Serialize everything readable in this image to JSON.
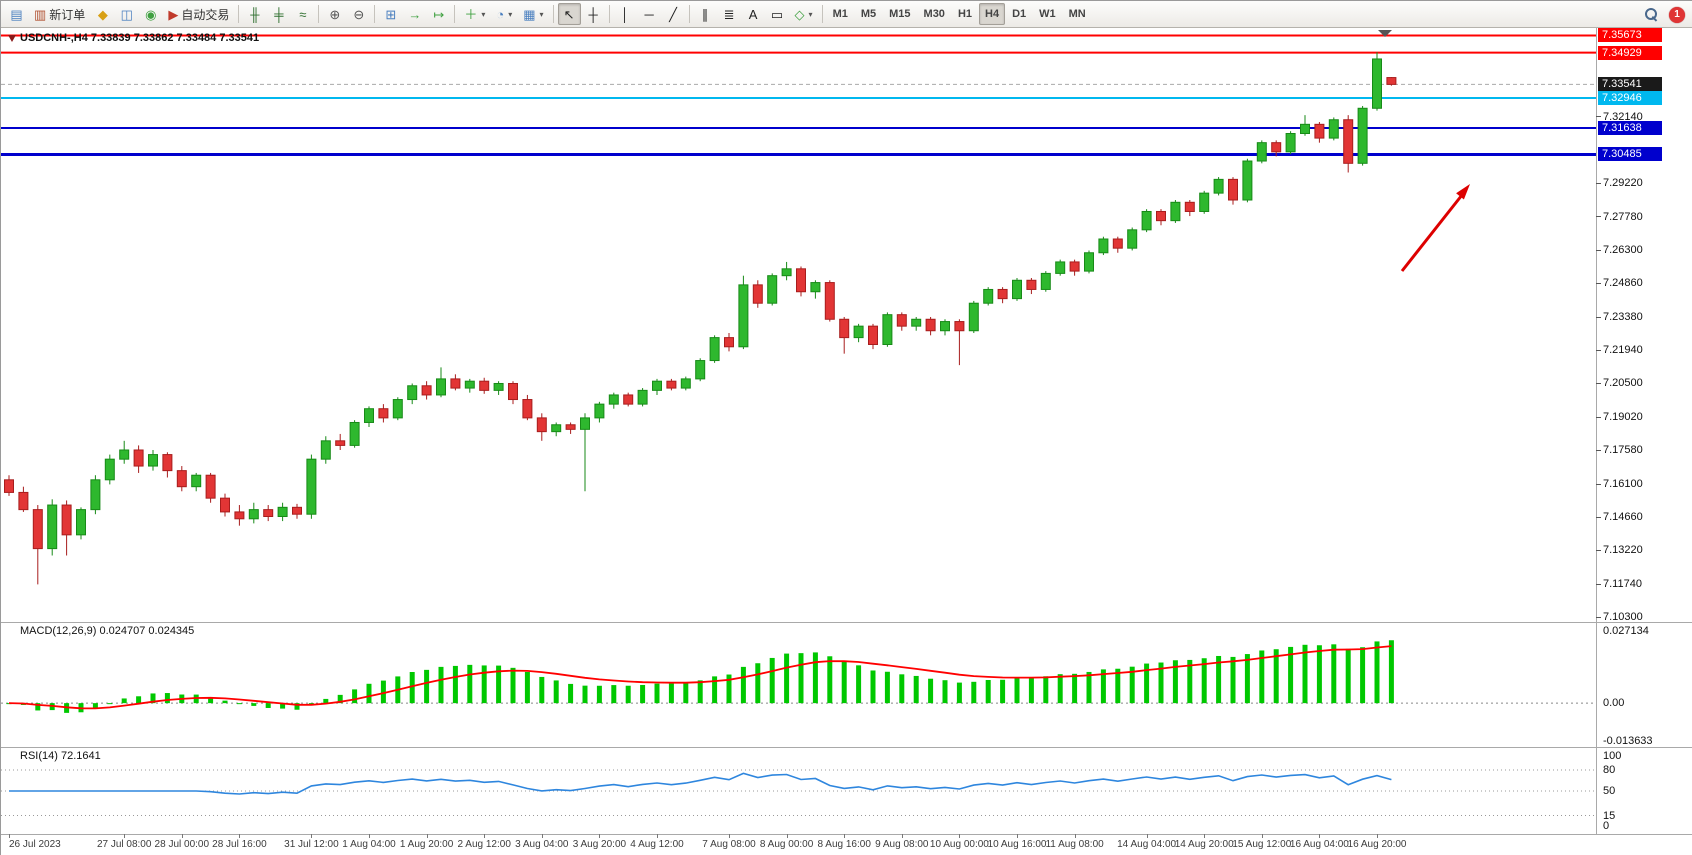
{
  "toolbar": {
    "notification_count": "1",
    "timeframes": [
      "M1",
      "M5",
      "M15",
      "M30",
      "H1",
      "H4",
      "D1",
      "W1",
      "MN"
    ],
    "active_timeframe": "H4",
    "groups": [
      [
        {
          "name": "new-chart-button",
          "icon": "new-chart-icon",
          "glyph": "▤",
          "color": "#4a7fbf"
        },
        {
          "name": "new-order-button",
          "icon": "new-order-icon",
          "glyph": "▥",
          "color": "#b05030",
          "text": "新订单"
        },
        {
          "name": "metaeditor-button",
          "icon": "metaeditor-icon",
          "glyph": "◆",
          "color": "#d8a015"
        },
        {
          "name": "market-watch-button",
          "icon": "market-watch-icon",
          "glyph": "◫",
          "color": "#4a7fbf"
        },
        {
          "name": "help-button",
          "icon": "help-icon",
          "glyph": "◉",
          "color": "#3fa040"
        },
        {
          "name": "auto-trading-button",
          "icon": "auto-trading-icon",
          "glyph": "▶",
          "color": "#c03a2b",
          "text": "自动交易"
        }
      ],
      [
        {
          "name": "bar-chart-button",
          "icon": "ohlc-bars-icon",
          "glyph": "╫",
          "color": "#2f6f2f"
        },
        {
          "name": "candlestick-chart-button",
          "icon": "candlestick-icon",
          "glyph": "╪",
          "color": "#2f6f2f"
        },
        {
          "name": "line-chart-button",
          "icon": "line-chart-icon",
          "glyph": "≈",
          "color": "#2f6f2f"
        }
      ],
      [
        {
          "name": "zoom-in-button",
          "icon": "zoom-in-icon",
          "glyph": "⊕",
          "color": "#555555"
        },
        {
          "name": "zoom-out-button",
          "icon": "zoom-out-icon",
          "glyph": "⊖",
          "color": "#555555"
        }
      ],
      [
        {
          "name": "tile-windows-button",
          "icon": "tile-windows-icon",
          "glyph": "⊞",
          "color": "#4a7fbf"
        },
        {
          "name": "auto-scroll-button",
          "icon": "auto-scroll-icon",
          "glyph": "→",
          "color": "#3fa040"
        },
        {
          "name": "chart-shift-button",
          "icon": "chart-shift-icon",
          "glyph": "↦",
          "color": "#3fa040"
        }
      ],
      [
        {
          "name": "indicators-button",
          "icon": "indicators-icon",
          "glyph": "＋",
          "color": "#3fa040",
          "arrow": true
        },
        {
          "name": "periods-button",
          "icon": "clock-icon",
          "glyph": "◔",
          "color": "#4a7fbf",
          "arrow": true
        },
        {
          "name": "templates-button",
          "icon": "template-icon",
          "glyph": "▦",
          "color": "#4a7fbf",
          "arrow": true
        }
      ],
      [
        {
          "name": "cursor-button",
          "icon": "cursor-icon",
          "glyph": "↖",
          "color": "#222222",
          "active": true
        },
        {
          "name": "crosshair-button",
          "icon": "crosshair-icon",
          "glyph": "┼",
          "color": "#222222"
        }
      ],
      [
        {
          "name": "vertical-line-button",
          "icon": "vertical-line-icon",
          "glyph": "│",
          "color": "#222222"
        },
        {
          "name": "horizontal-line-button",
          "icon": "horizontal-line-icon",
          "glyph": "─",
          "color": "#222222"
        },
        {
          "name": "trendline-button",
          "icon": "trendline-icon",
          "glyph": "╱",
          "color": "#222222"
        }
      ],
      [
        {
          "name": "channel-button",
          "icon": "channel-icon",
          "glyph": "∥",
          "color": "#222222"
        },
        {
          "name": "fibonacci-button",
          "icon": "fibonacci-icon",
          "glyph": "≣",
          "color": "#222222"
        },
        {
          "name": "text-button",
          "icon": "text-icon",
          "glyph": "A",
          "color": "#222222"
        },
        {
          "name": "label-button",
          "icon": "label-icon",
          "glyph": "▭",
          "color": "#222222"
        },
        {
          "name": "shapes-button",
          "icon": "shapes-icon",
          "glyph": "◇",
          "color": "#3fa040",
          "arrow": true
        }
      ]
    ]
  },
  "main_chart": {
    "title": "USDCNH-,H4 7.33839 7.33862 7.33484 7.33541",
    "ohlc": {
      "open": "7.33839",
      "high": "7.33862",
      "low": "7.33484",
      "close": "7.33541"
    },
    "colors": {
      "bull": "#2eb82e",
      "bull_border": "#178a17",
      "bear": "#e23535",
      "bear_border": "#a81d1d",
      "arrow": "#dd0000",
      "bid_line": "#aaaaaa"
    },
    "price_axis": {
      "plain_ticks": [
        "7.32140",
        "7.29220",
        "7.27780",
        "7.26300",
        "7.24860",
        "7.23380",
        "7.21940",
        "7.20500",
        "7.19020",
        "7.17580",
        "7.16100",
        "7.14660",
        "7.13220",
        "7.11740",
        "7.10300"
      ],
      "line_labels": [
        {
          "text": "7.35673",
          "price": 7.35673,
          "bg": "#ff0000"
        },
        {
          "text": "7.34929",
          "price": 7.34929,
          "bg": "#ff0000"
        },
        {
          "text": "7.33541",
          "price": 7.33541,
          "bg": "#1a1a1a"
        },
        {
          "text": "7.32946",
          "price": 7.32946,
          "bg": "#00b8ef"
        },
        {
          "text": "7.31638",
          "price": 7.31638,
          "bg": "#0000cd"
        },
        {
          "text": "7.30485",
          "price": 7.30485,
          "bg": "#0000cd"
        }
      ]
    }
  },
  "macd": {
    "label": "MACD(12,26,9) 0.024707 0.024345",
    "value_main": "0.024707",
    "value_signal": "0.024345",
    "axis_ticks": [
      "0.027134",
      "0.00",
      "-0.013633"
    ],
    "histogram_color": "#00c800",
    "signal_color": "#ff0000",
    "ylim": [
      -0.0145,
      0.0265
    ]
  },
  "rsi": {
    "label": "RSI(14) 72.1641",
    "value": "72.1641",
    "axis_ticks": [
      "100",
      "80",
      "50",
      "15",
      "0"
    ],
    "levels": [
      80,
      50,
      15
    ],
    "line_color": "#2e86de"
  },
  "time_axis": {
    "labels": [
      "26 Jul 2023",
      "27 Jul 08:00",
      "28 Jul 00:00",
      "28 Jul 16:00",
      "31 Jul 12:00",
      "1 Aug 04:00",
      "1 Aug 20:00",
      "2 Aug 12:00",
      "3 Aug 04:00",
      "3 Aug 20:00",
      "4 Aug 12:00",
      "7 Aug 08:00",
      "8 Aug 00:00",
      "8 Aug 16:00",
      "9 Aug 08:00",
      "10 Aug 00:00",
      "10 Aug 16:00",
      "11 Aug 08:00",
      "14 Aug 04:00",
      "14 Aug 20:00",
      "15 Aug 12:00",
      "16 Aug 04:00",
      "16 Aug 20:00"
    ],
    "bar_indices": [
      0,
      8,
      12,
      16,
      21,
      25,
      29,
      33,
      37,
      41,
      45,
      50,
      54,
      58,
      62,
      66,
      70,
      74,
      79,
      83,
      87,
      91,
      95
    ]
  },
  "chart_data": {
    "type": "candlestick",
    "title": "USDCNH- H4",
    "ylim": [
      7.101,
      7.36
    ],
    "horizontal_lines": [
      {
        "price": 7.35673,
        "color": "#ff0000",
        "width": 2
      },
      {
        "price": 7.34929,
        "color": "#ff0000",
        "width": 2
      },
      {
        "price": 7.32946,
        "color": "#00b8ef",
        "width": 2
      },
      {
        "price": 7.31638,
        "color": "#0000cd",
        "width": 2
      },
      {
        "price": 7.30485,
        "color": "#0000cd",
        "width": 3
      }
    ],
    "bid_price": 7.33541,
    "annotations": [
      {
        "type": "arrow",
        "color": "#dd0000",
        "direction": "up-right"
      }
    ],
    "indicators": [
      {
        "name": "MACD",
        "params": "12,26,9",
        "current_main": 0.024707,
        "current_signal": 0.024345,
        "derived_from": "candles_ohlc closes"
      },
      {
        "name": "RSI",
        "params": "14",
        "current": 72.1641,
        "levels": [
          80,
          50,
          15
        ],
        "derived_from": "candles_ohlc closes"
      }
    ],
    "candles_ohlc": [
      [
        7.163,
        7.165,
        7.156,
        7.1575
      ],
      [
        7.1575,
        7.16,
        7.149,
        7.15
      ],
      [
        7.15,
        7.152,
        7.1174,
        7.133
      ],
      [
        7.133,
        7.1545,
        7.13,
        7.152
      ],
      [
        7.152,
        7.154,
        7.13,
        7.139
      ],
      [
        7.139,
        7.151,
        7.137,
        7.15
      ],
      [
        7.15,
        7.165,
        7.148,
        7.163
      ],
      [
        7.163,
        7.174,
        7.161,
        7.172
      ],
      [
        7.172,
        7.18,
        7.17,
        7.176
      ],
      [
        7.176,
        7.178,
        7.166,
        7.169
      ],
      [
        7.169,
        7.176,
        7.167,
        7.174
      ],
      [
        7.174,
        7.175,
        7.164,
        7.167
      ],
      [
        7.167,
        7.169,
        7.158,
        7.16
      ],
      [
        7.16,
        7.166,
        7.158,
        7.165
      ],
      [
        7.165,
        7.166,
        7.153,
        7.155
      ],
      [
        7.155,
        7.157,
        7.147,
        7.149
      ],
      [
        7.149,
        7.152,
        7.143,
        7.146
      ],
      [
        7.146,
        7.153,
        7.144,
        7.15
      ],
      [
        7.15,
        7.152,
        7.145,
        7.147
      ],
      [
        7.147,
        7.153,
        7.145,
        7.151
      ],
      [
        7.151,
        7.1525,
        7.146,
        7.148
      ],
      [
        7.148,
        7.174,
        7.146,
        7.172
      ],
      [
        7.172,
        7.182,
        7.17,
        7.18
      ],
      [
        7.18,
        7.183,
        7.176,
        7.178
      ],
      [
        7.178,
        7.189,
        7.177,
        7.188
      ],
      [
        7.188,
        7.195,
        7.186,
        7.194
      ],
      [
        7.194,
        7.196,
        7.188,
        7.19
      ],
      [
        7.19,
        7.199,
        7.189,
        7.198
      ],
      [
        7.198,
        7.205,
        7.196,
        7.204
      ],
      [
        7.204,
        7.206,
        7.198,
        7.2
      ],
      [
        7.2,
        7.212,
        7.199,
        7.207
      ],
      [
        7.207,
        7.209,
        7.202,
        7.203
      ],
      [
        7.203,
        7.207,
        7.201,
        7.206
      ],
      [
        7.206,
        7.2075,
        7.2005,
        7.202
      ],
      [
        7.202,
        7.206,
        7.2,
        7.205
      ],
      [
        7.205,
        7.206,
        7.196,
        7.198
      ],
      [
        7.198,
        7.2,
        7.189,
        7.19
      ],
      [
        7.19,
        7.192,
        7.18,
        7.184
      ],
      [
        7.184,
        7.188,
        7.182,
        7.187
      ],
      [
        7.187,
        7.188,
        7.183,
        7.185
      ],
      [
        7.185,
        7.192,
        7.158,
        7.19
      ],
      [
        7.19,
        7.197,
        7.188,
        7.196
      ],
      [
        7.196,
        7.201,
        7.194,
        7.2
      ],
      [
        7.2,
        7.201,
        7.195,
        7.196
      ],
      [
        7.196,
        7.203,
        7.195,
        7.202
      ],
      [
        7.202,
        7.207,
        7.2,
        7.206
      ],
      [
        7.206,
        7.207,
        7.202,
        7.203
      ],
      [
        7.203,
        7.208,
        7.202,
        7.207
      ],
      [
        7.207,
        7.216,
        7.206,
        7.215
      ],
      [
        7.215,
        7.226,
        7.214,
        7.225
      ],
      [
        7.225,
        7.227,
        7.219,
        7.221
      ],
      [
        7.221,
        7.252,
        7.22,
        7.248
      ],
      [
        7.248,
        7.25,
        7.238,
        7.24
      ],
      [
        7.24,
        7.253,
        7.239,
        7.252
      ],
      [
        7.252,
        7.258,
        7.25,
        7.255
      ],
      [
        7.255,
        7.256,
        7.243,
        7.245
      ],
      [
        7.245,
        7.25,
        7.242,
        7.249
      ],
      [
        7.249,
        7.25,
        7.232,
        7.233
      ],
      [
        7.233,
        7.234,
        7.218,
        7.225
      ],
      [
        7.225,
        7.231,
        7.223,
        7.23
      ],
      [
        7.23,
        7.231,
        7.22,
        7.222
      ],
      [
        7.222,
        7.236,
        7.221,
        7.235
      ],
      [
        7.235,
        7.236,
        7.228,
        7.23
      ],
      [
        7.23,
        7.234,
        7.228,
        7.233
      ],
      [
        7.233,
        7.234,
        7.226,
        7.228
      ],
      [
        7.228,
        7.233,
        7.226,
        7.232
      ],
      [
        7.232,
        7.233,
        7.213,
        7.228
      ],
      [
        7.228,
        7.241,
        7.227,
        7.24
      ],
      [
        7.24,
        7.247,
        7.239,
        7.246
      ],
      [
        7.246,
        7.247,
        7.24,
        7.242
      ],
      [
        7.242,
        7.251,
        7.241,
        7.25
      ],
      [
        7.25,
        7.251,
        7.244,
        7.246
      ],
      [
        7.246,
        7.254,
        7.245,
        7.253
      ],
      [
        7.253,
        7.259,
        7.252,
        7.258
      ],
      [
        7.258,
        7.259,
        7.252,
        7.254
      ],
      [
        7.254,
        7.263,
        7.253,
        7.262
      ],
      [
        7.262,
        7.269,
        7.261,
        7.268
      ],
      [
        7.268,
        7.269,
        7.262,
        7.264
      ],
      [
        7.264,
        7.273,
        7.263,
        7.272
      ],
      [
        7.272,
        7.281,
        7.271,
        7.28
      ],
      [
        7.28,
        7.281,
        7.274,
        7.276
      ],
      [
        7.276,
        7.285,
        7.275,
        7.284
      ],
      [
        7.284,
        7.285,
        7.278,
        7.28
      ],
      [
        7.28,
        7.289,
        7.279,
        7.288
      ],
      [
        7.288,
        7.295,
        7.287,
        7.294
      ],
      [
        7.294,
        7.295,
        7.283,
        7.285
      ],
      [
        7.285,
        7.303,
        7.284,
        7.302
      ],
      [
        7.302,
        7.311,
        7.301,
        7.31
      ],
      [
        7.31,
        7.311,
        7.304,
        7.306
      ],
      [
        7.306,
        7.315,
        7.305,
        7.314
      ],
      [
        7.314,
        7.322,
        7.313,
        7.318
      ],
      [
        7.318,
        7.319,
        7.31,
        7.312
      ],
      [
        7.312,
        7.321,
        7.311,
        7.32
      ],
      [
        7.32,
        7.322,
        7.297,
        7.301
      ],
      [
        7.301,
        7.326,
        7.3,
        7.325
      ],
      [
        7.325,
        7.3495,
        7.324,
        7.3465
      ],
      [
        7.33839,
        7.33862,
        7.33484,
        7.33541
      ]
    ]
  }
}
